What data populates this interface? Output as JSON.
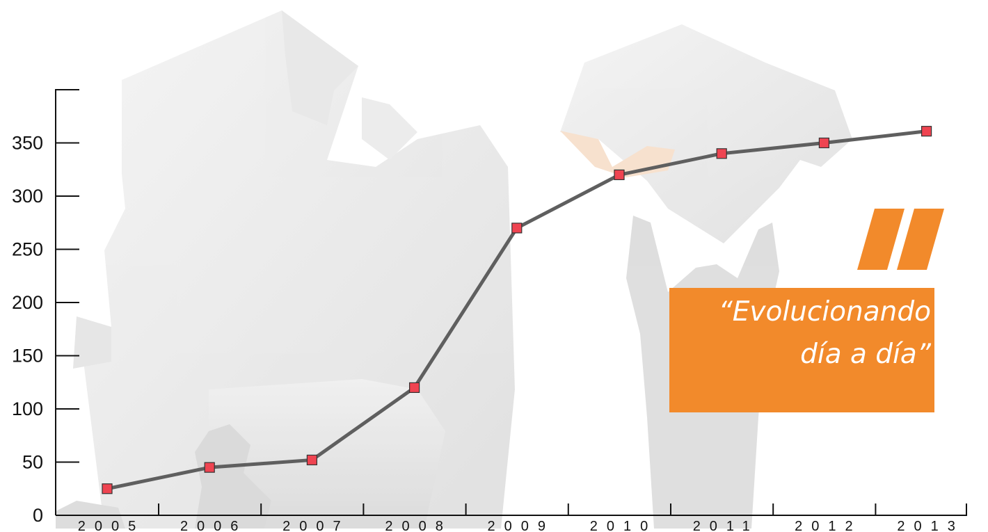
{
  "chart_data": {
    "type": "line",
    "title": "",
    "xlabel": "",
    "ylabel": "",
    "x": [
      "2005",
      "2006",
      "2007",
      "2008",
      "2009",
      "2010",
      "2011",
      "2012",
      "2013"
    ],
    "series": [
      {
        "values": [
          25,
          45,
          52,
          120,
          270,
          320,
          340,
          350,
          361
        ]
      }
    ],
    "yticks": [
      0,
      50,
      100,
      150,
      200,
      250,
      300,
      350
    ],
    "ylim": [
      0,
      400
    ],
    "grid": false,
    "line_color": "#5f5f5f",
    "marker_color": "#ef4451",
    "marker": "square"
  },
  "quote": {
    "line1": "“Evolucionando",
    "line2": "día a día”",
    "box_color": "#f28a2b",
    "mark_color": "#f28a2b"
  }
}
